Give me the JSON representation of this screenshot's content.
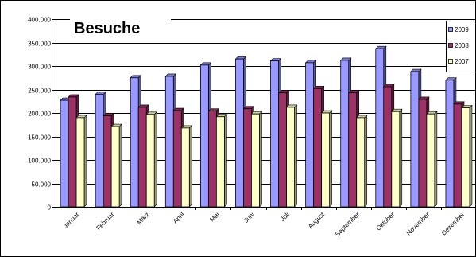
{
  "chart_data": {
    "type": "bar",
    "title": "Besuche",
    "xlabel": "",
    "ylabel": "",
    "ylim": [
      0,
      400000
    ],
    "y_ticks": [
      "0",
      "50.000",
      "100.000",
      "150.000",
      "200.000",
      "250.000",
      "300.000",
      "350.000",
      "400.000"
    ],
    "grid": true,
    "legend_position": "top-right",
    "categories": [
      "Januar",
      "Februar",
      "März",
      "April",
      "Mai",
      "Juni",
      "Juli",
      "August",
      "September",
      "Oktober",
      "November",
      "Dezember"
    ],
    "series": [
      {
        "name": "2009",
        "color": "#9999ff",
        "values": [
          227000,
          240000,
          275000,
          278000,
          302000,
          315000,
          311000,
          307000,
          312000,
          337000,
          288000,
          270000
        ]
      },
      {
        "name": "2008",
        "color": "#993366",
        "values": [
          234000,
          194000,
          212000,
          205000,
          204000,
          209000,
          243000,
          252000,
          243000,
          256000,
          229000,
          219000
        ]
      },
      {
        "name": "2007",
        "color": "#ffffcc",
        "values": [
          190000,
          171000,
          197000,
          168000,
          192000,
          198000,
          212000,
          200000,
          190000,
          203000,
          198000,
          211000
        ]
      }
    ]
  }
}
